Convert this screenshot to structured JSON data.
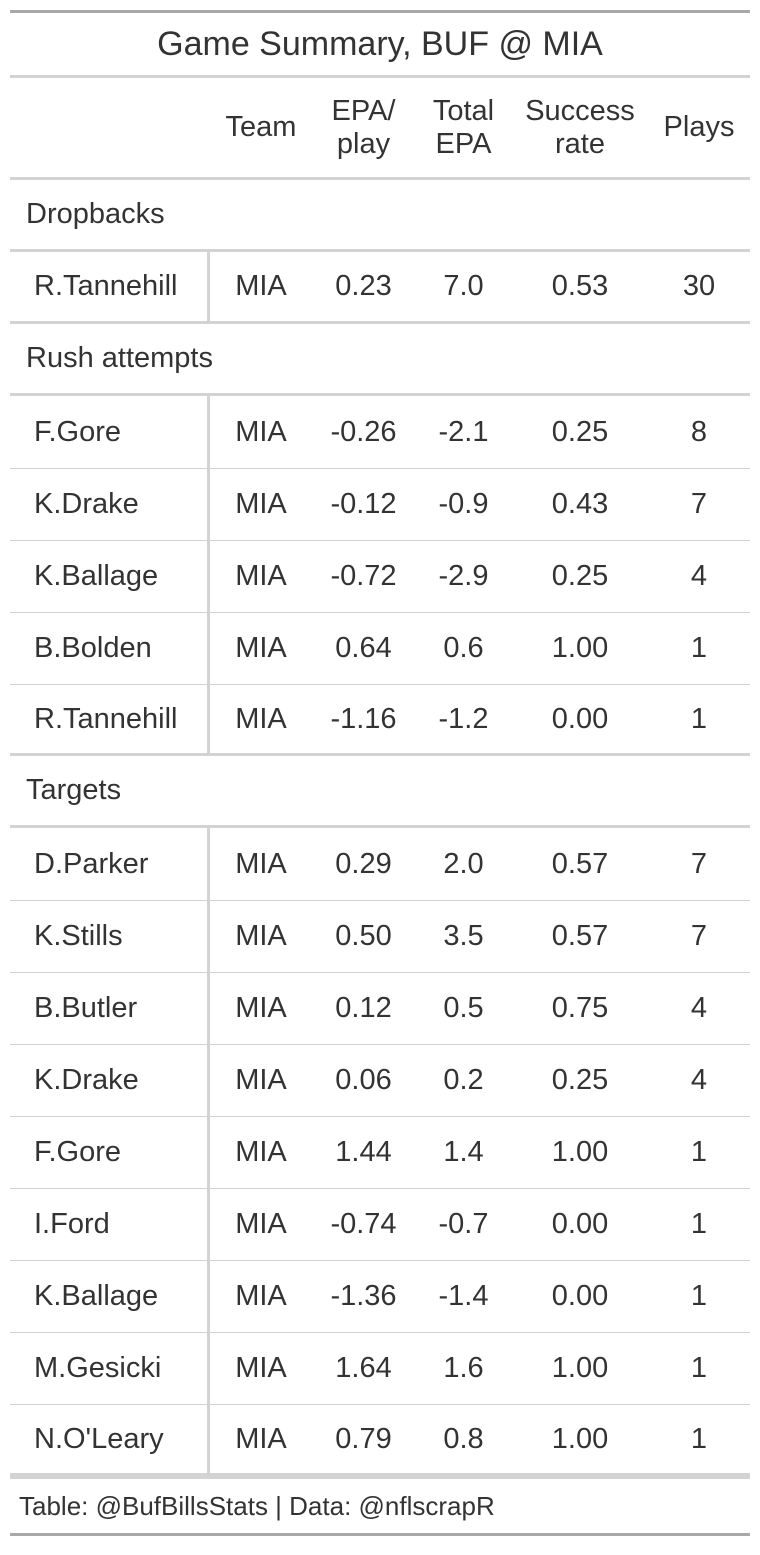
{
  "chart_data": {
    "type": "table",
    "title": "Game Summary, BUF @ MIA",
    "columns": [
      "",
      "Team",
      "EPA/ play",
      "Total EPA",
      "Success rate",
      "Plays"
    ],
    "column_lines": [
      [
        ""
      ],
      [
        "Team"
      ],
      [
        "EPA/",
        "play"
      ],
      [
        "Total",
        "EPA"
      ],
      [
        "Success",
        "rate"
      ],
      [
        "Plays"
      ]
    ],
    "groups": [
      {
        "name": "Dropbacks",
        "rows": [
          {
            "player": "R.Tannehill",
            "team": "MIA",
            "epa_play": "0.23",
            "total_epa": "7.0",
            "success_rate": "0.53",
            "plays": "30"
          }
        ]
      },
      {
        "name": "Rush attempts",
        "rows": [
          {
            "player": "F.Gore",
            "team": "MIA",
            "epa_play": "-0.26",
            "total_epa": "-2.1",
            "success_rate": "0.25",
            "plays": "8"
          },
          {
            "player": "K.Drake",
            "team": "MIA",
            "epa_play": "-0.12",
            "total_epa": "-0.9",
            "success_rate": "0.43",
            "plays": "7"
          },
          {
            "player": "K.Ballage",
            "team": "MIA",
            "epa_play": "-0.72",
            "total_epa": "-2.9",
            "success_rate": "0.25",
            "plays": "4"
          },
          {
            "player": "B.Bolden",
            "team": "MIA",
            "epa_play": "0.64",
            "total_epa": "0.6",
            "success_rate": "1.00",
            "plays": "1"
          },
          {
            "player": "R.Tannehill",
            "team": "MIA",
            "epa_play": "-1.16",
            "total_epa": "-1.2",
            "success_rate": "0.00",
            "plays": "1"
          }
        ]
      },
      {
        "name": "Targets",
        "rows": [
          {
            "player": "D.Parker",
            "team": "MIA",
            "epa_play": "0.29",
            "total_epa": "2.0",
            "success_rate": "0.57",
            "plays": "7"
          },
          {
            "player": "K.Stills",
            "team": "MIA",
            "epa_play": "0.50",
            "total_epa": "3.5",
            "success_rate": "0.57",
            "plays": "7"
          },
          {
            "player": "B.Butler",
            "team": "MIA",
            "epa_play": "0.12",
            "total_epa": "0.5",
            "success_rate": "0.75",
            "plays": "4"
          },
          {
            "player": "K.Drake",
            "team": "MIA",
            "epa_play": "0.06",
            "total_epa": "0.2",
            "success_rate": "0.25",
            "plays": "4"
          },
          {
            "player": "F.Gore",
            "team": "MIA",
            "epa_play": "1.44",
            "total_epa": "1.4",
            "success_rate": "1.00",
            "plays": "1"
          },
          {
            "player": "I.Ford",
            "team": "MIA",
            "epa_play": "-0.74",
            "total_epa": "-0.7",
            "success_rate": "0.00",
            "plays": "1"
          },
          {
            "player": "K.Ballage",
            "team": "MIA",
            "epa_play": "-1.36",
            "total_epa": "-1.4",
            "success_rate": "0.00",
            "plays": "1"
          },
          {
            "player": "M.Gesicki",
            "team": "MIA",
            "epa_play": "1.64",
            "total_epa": "1.6",
            "success_rate": "1.00",
            "plays": "1"
          },
          {
            "player": "N.O'Leary",
            "team": "MIA",
            "epa_play": "0.79",
            "total_epa": "0.8",
            "success_rate": "1.00",
            "plays": "1"
          }
        ]
      }
    ],
    "source_note": "Table: @BufBillsStats | Data: @nflscrapR"
  }
}
